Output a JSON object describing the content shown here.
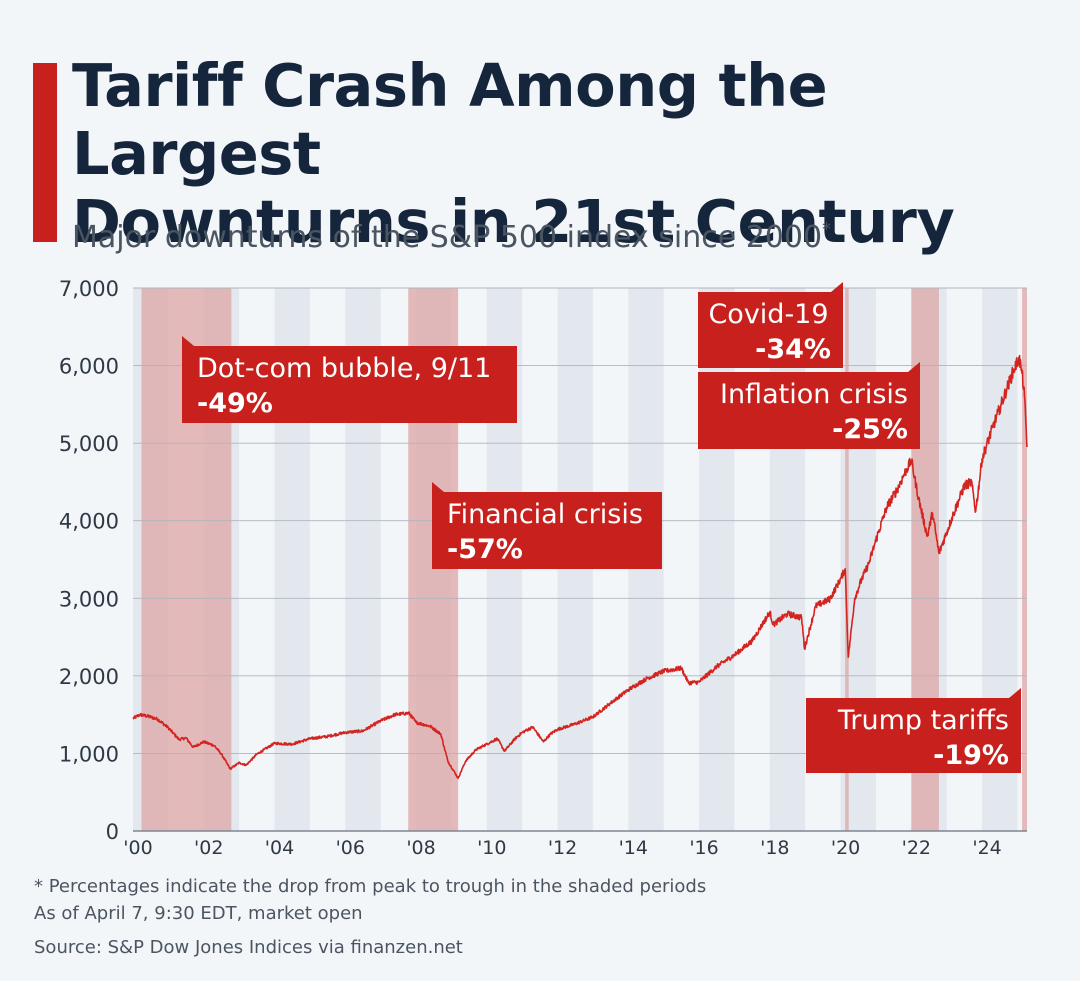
{
  "header": {
    "title_line1": "Tariff Crash Among the Largest",
    "title_line2": "Downturns in 21st Century",
    "subtitle": "Major downturns of the S&P 500 index since 2000",
    "subtitle_mark": "*"
  },
  "footer": {
    "note": "* Percentages indicate the drop from peak to trough in the shaded periods",
    "as_of": "As of April 7, 9:30 EDT, market open",
    "source": "Source: S&P Dow Jones Indices via finanzen.net"
  },
  "colors": {
    "accent": "#c8201d",
    "title": "#15253b",
    "line": "#d42420",
    "shade": "#dfaeae",
    "callout": "#c8201d"
  },
  "chart_data": {
    "type": "line",
    "title": "Tariff Crash Among the Largest Downturns in 21st Century",
    "subtitle": "Major downturns of the S&P 500 index since 2000",
    "xlabel": "",
    "ylabel": "",
    "xlim": [
      2000.0,
      2025.27
    ],
    "ylim": [
      0,
      7000
    ],
    "y_ticks": [
      0,
      1000,
      2000,
      3000,
      4000,
      5000,
      6000,
      7000
    ],
    "y_tick_labels": [
      "0",
      "1,000",
      "2,000",
      "3,000",
      "4,000",
      "5,000",
      "6,000",
      "7,000"
    ],
    "x_ticks": [
      2000,
      2002,
      2004,
      2006,
      2008,
      2010,
      2012,
      2014,
      2016,
      2018,
      2020,
      2022,
      2024
    ],
    "x_tick_labels": [
      "'00",
      "'02",
      "'04",
      "'06",
      "'08",
      "'10",
      "'12",
      "'14",
      "'16",
      "'18",
      "'20",
      "'22",
      "'24"
    ],
    "grid": true,
    "alternating_year_bands": true,
    "series": [
      {
        "x": [
          2000.0,
          2000.2,
          2000.5,
          2000.7,
          2001.0,
          2001.3,
          2001.5,
          2001.7,
          2002.0,
          2002.3,
          2002.5,
          2002.75,
          2003.0,
          2003.2,
          2003.5,
          2004.0,
          2004.5,
          2005.0,
          2005.5,
          2006.0,
          2006.5,
          2007.0,
          2007.4,
          2007.8,
          2008.0,
          2008.4,
          2008.7,
          2008.9,
          2009.19,
          2009.4,
          2009.7,
          2010.0,
          2010.3,
          2010.5,
          2010.8,
          2011.0,
          2011.3,
          2011.6,
          2011.8,
          2012.0,
          2012.5,
          2013.0,
          2013.5,
          2014.0,
          2014.5,
          2015.0,
          2015.5,
          2015.7,
          2016.0,
          2016.5,
          2017.0,
          2017.5,
          2018.0,
          2018.1,
          2018.5,
          2018.9,
          2018.98,
          2019.3,
          2019.7,
          2020.0,
          2020.13,
          2020.22,
          2020.4,
          2020.6,
          2020.8,
          2021.0,
          2021.3,
          2021.6,
          2021.8,
          2022.0,
          2022.2,
          2022.45,
          2022.6,
          2022.78,
          2023.0,
          2023.2,
          2023.5,
          2023.7,
          2023.82,
          2024.0,
          2024.3,
          2024.5,
          2024.7,
          2024.9,
          2025.05,
          2025.13,
          2025.2,
          2025.27
        ],
        "y": [
          1450,
          1500,
          1470,
          1440,
          1330,
          1180,
          1200,
          1080,
          1150,
          1100,
          990,
          800,
          880,
          850,
          990,
          1130,
          1120,
          1190,
          1220,
          1270,
          1290,
          1420,
          1500,
          1520,
          1400,
          1350,
          1250,
          900,
          680,
          900,
          1050,
          1120,
          1190,
          1030,
          1190,
          1270,
          1340,
          1150,
          1250,
          1310,
          1380,
          1470,
          1650,
          1820,
          1960,
          2060,
          2100,
          1910,
          1920,
          2120,
          2270,
          2450,
          2820,
          2660,
          2800,
          2750,
          2350,
          2900,
          2990,
          3250,
          3380,
          2240,
          3000,
          3250,
          3450,
          3750,
          4170,
          4400,
          4600,
          4780,
          4300,
          3800,
          4100,
          3580,
          3850,
          4100,
          4450,
          4500,
          4120,
          4800,
          5200,
          5450,
          5700,
          5950,
          6100,
          5900,
          5600,
          4950
        ]
      }
    ],
    "shaded_periods": [
      {
        "start": 2000.24,
        "end": 2002.78,
        "label": "Dot-com bubble, 9/11",
        "change": "-49%"
      },
      {
        "start": 2007.78,
        "end": 2009.19,
        "label": "Financial crisis",
        "change": "-57%"
      },
      {
        "start": 2020.13,
        "end": 2020.23,
        "label": "Covid-19",
        "change": "-34%"
      },
      {
        "start": 2022.0,
        "end": 2022.78,
        "label": "Inflation crisis",
        "change": "-25%"
      },
      {
        "start": 2025.13,
        "end": 2025.27,
        "label": "Trump tariffs",
        "change": "-19%"
      }
    ]
  }
}
